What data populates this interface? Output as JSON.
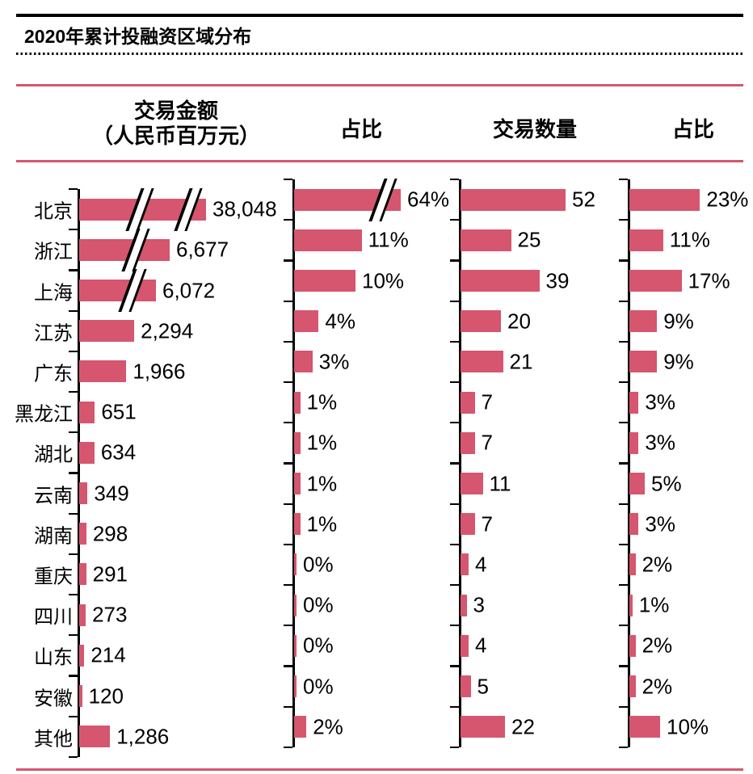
{
  "title": "2020年累计投融资区域分布",
  "columns": [
    {
      "label": "交易金额",
      "sublabel": "（人民币百万元）"
    },
    {
      "label": "占比"
    },
    {
      "label": "交易数量"
    },
    {
      "label": "占比"
    }
  ],
  "accent_color": "#d5566e",
  "chart_data": {
    "type": "bar",
    "orientation": "horizontal",
    "title": "2020年累计投融资区域分布",
    "categories": [
      "北京",
      "浙江",
      "上海",
      "江苏",
      "广东",
      "黑龙江",
      "湖北",
      "云南",
      "湖南",
      "重庆",
      "四川",
      "山东",
      "安徽",
      "其他"
    ],
    "series": [
      {
        "name": "交易金额（人民币百万元）",
        "values": [
          38048,
          6677,
          6072,
          2294,
          1966,
          651,
          634,
          349,
          298,
          291,
          273,
          214,
          120,
          1286
        ],
        "value_labels": [
          "38,048",
          "6,677",
          "6,072",
          "2,294",
          "1,966",
          "651",
          "634",
          "349",
          "298",
          "291",
          "273",
          "214",
          "120",
          "1,286"
        ],
        "axis_break_rows": [
          0,
          1,
          2
        ]
      },
      {
        "name": "占比",
        "values": [
          64,
          11,
          10,
          4,
          3,
          1,
          1,
          1,
          1,
          0,
          0,
          0,
          0,
          2
        ],
        "value_labels": [
          "64%",
          "11%",
          "10%",
          "4%",
          "3%",
          "1%",
          "1%",
          "1%",
          "1%",
          "0%",
          "0%",
          "0%",
          "0%",
          "2%"
        ],
        "axis_break_rows": [
          0
        ]
      },
      {
        "name": "交易数量",
        "values": [
          52,
          25,
          39,
          20,
          21,
          7,
          7,
          11,
          7,
          4,
          3,
          4,
          5,
          22
        ],
        "value_labels": [
          "52",
          "25",
          "39",
          "20",
          "21",
          "7",
          "7",
          "11",
          "7",
          "4",
          "3",
          "4",
          "5",
          "22"
        ],
        "axis_break_rows": []
      },
      {
        "name": "占比",
        "values": [
          23,
          11,
          17,
          9,
          9,
          3,
          3,
          5,
          3,
          2,
          1,
          2,
          2,
          10
        ],
        "value_labels": [
          "23%",
          "11%",
          "17%",
          "9%",
          "9%",
          "3%",
          "3%",
          "5%",
          "3%",
          "2%",
          "1%",
          "2%",
          "2%",
          "10%"
        ],
        "axis_break_rows": [
          0
        ]
      }
    ],
    "legend": "none",
    "grid": "off",
    "bar_color": "#d5566e"
  }
}
